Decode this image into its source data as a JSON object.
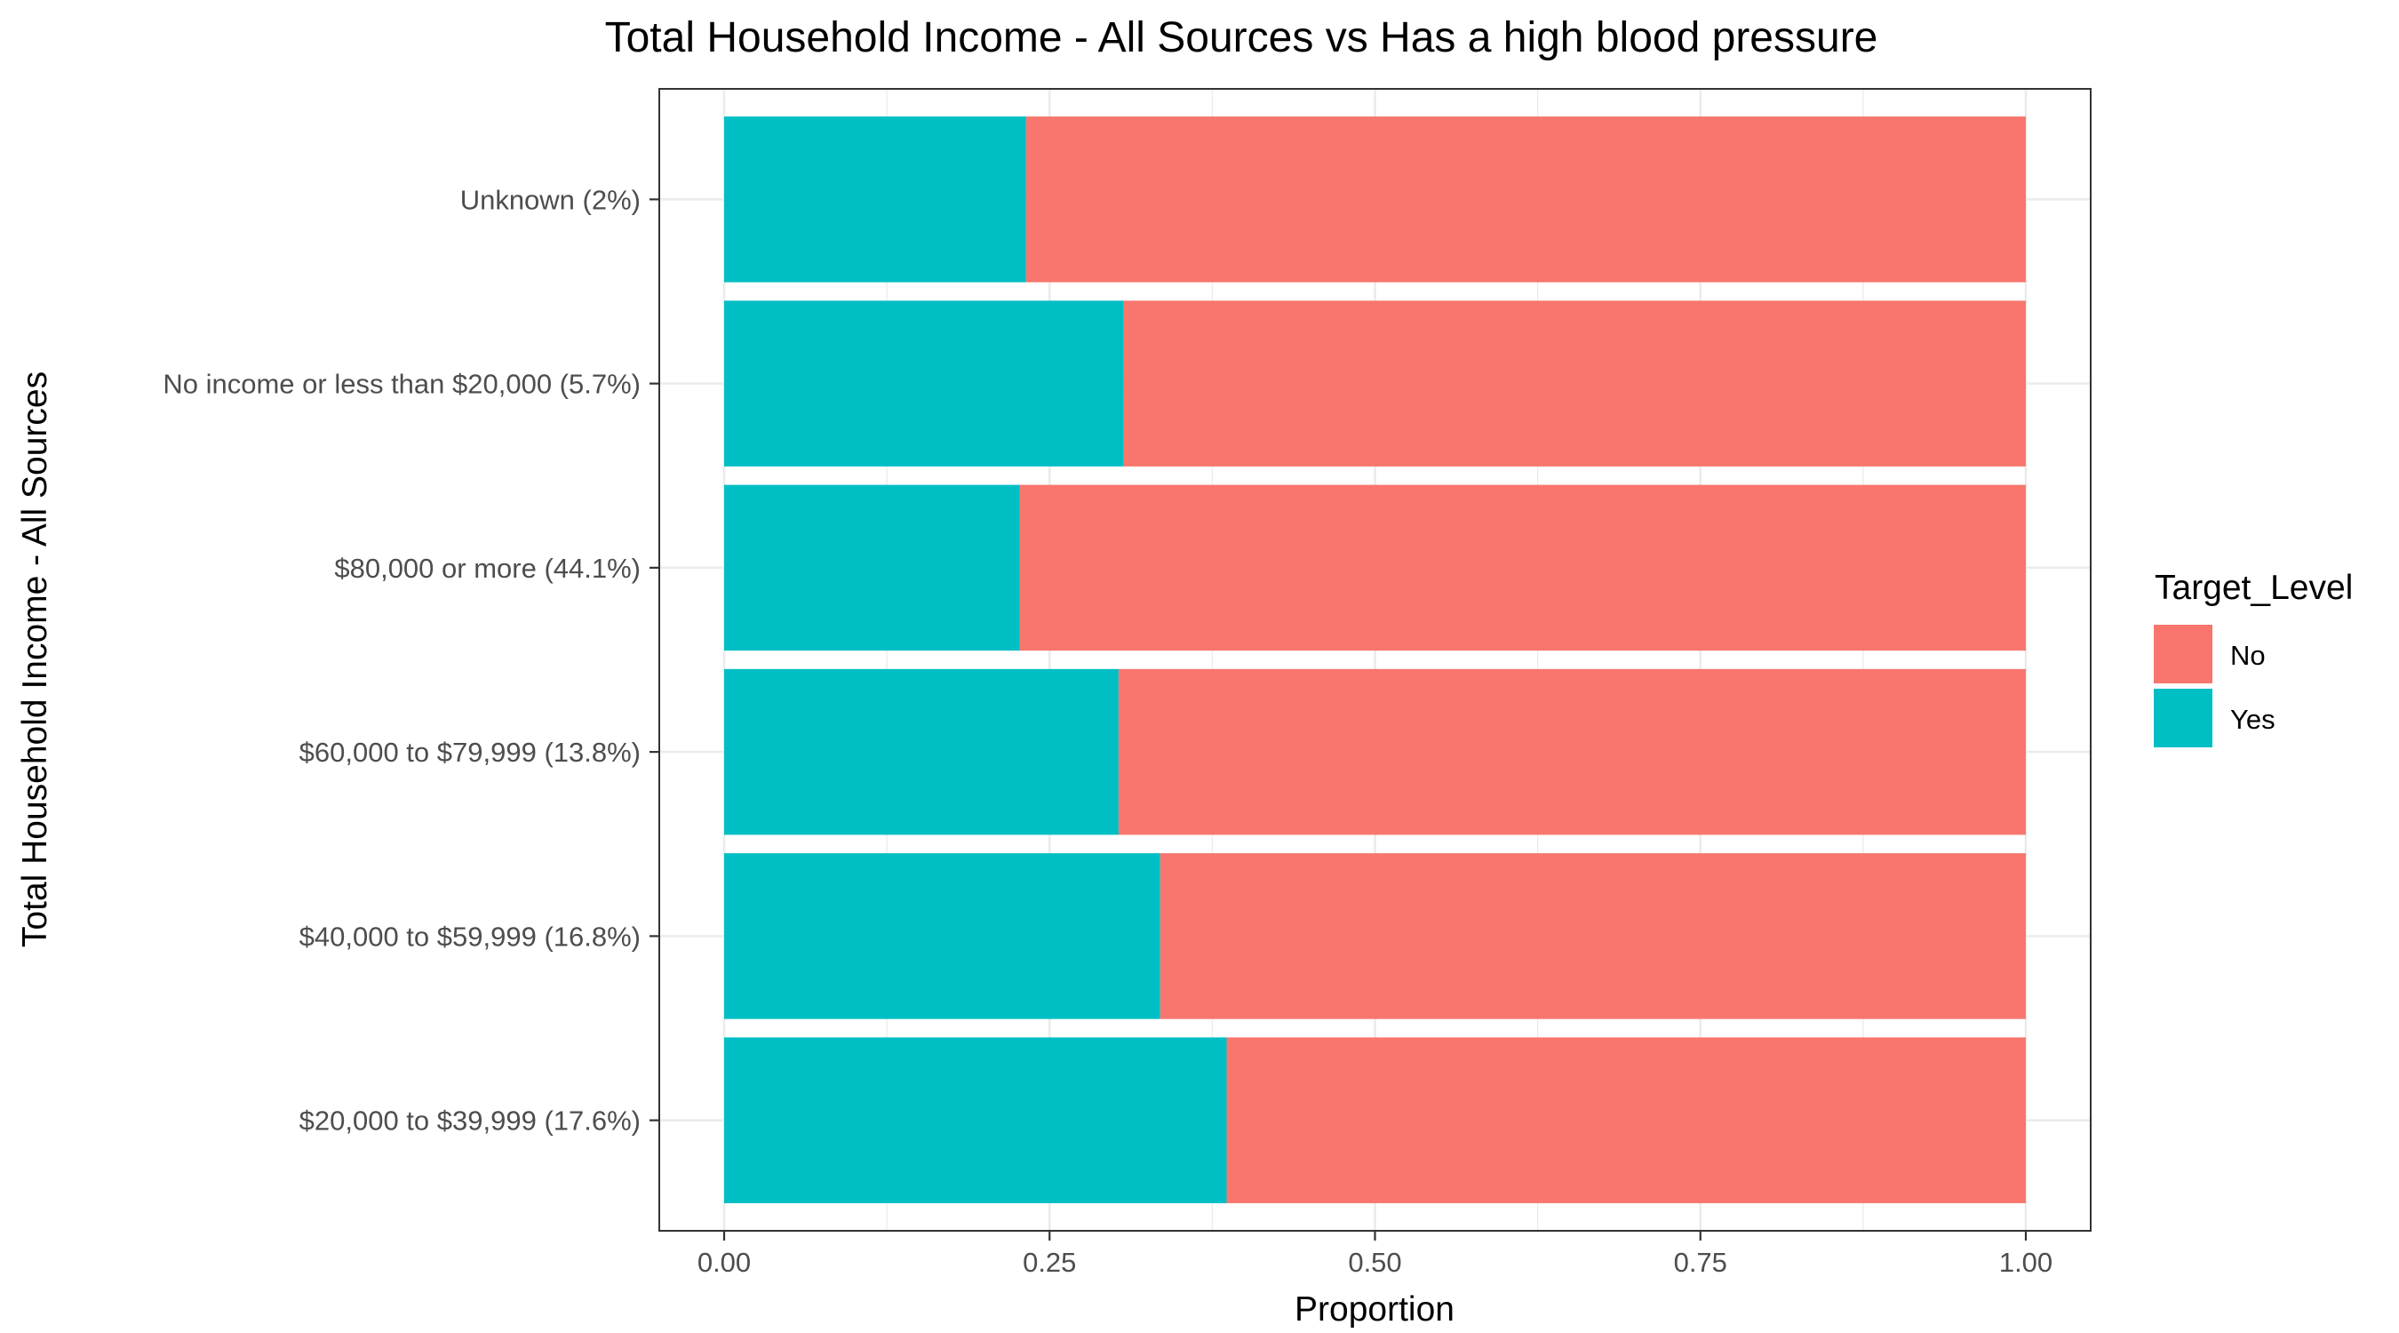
{
  "chart_data": {
    "type": "bar",
    "orientation": "horizontal",
    "stacked": true,
    "title": "Total Household Income - All Sources vs Has a high blood pressure",
    "xlabel": "Proportion",
    "ylabel": "Total Household Income - All Sources",
    "xlim": [
      0,
      1
    ],
    "x_ticks": [
      "0.00",
      "0.25",
      "0.50",
      "0.75",
      "1.00"
    ],
    "grid": true,
    "legend": {
      "title": "Target_Level",
      "position": "right"
    },
    "categories": [
      "Unknown (2%)",
      "No income or less than $20,000 (5.7%)",
      "$80,000 or more (44.1%)",
      "$60,000 to $79,999 (13.8%)",
      "$40,000 to $59,999 (16.8%)",
      "$20,000 to $39,999 (17.6%)"
    ],
    "series": [
      {
        "name": "Yes",
        "color": "#00bfc4",
        "values": [
          0.232,
          0.307,
          0.227,
          0.303,
          0.335,
          0.386
        ]
      },
      {
        "name": "No",
        "color": "#f8766d",
        "values": [
          0.768,
          0.693,
          0.773,
          0.697,
          0.665,
          0.614
        ]
      }
    ],
    "legend_order": [
      "No",
      "Yes"
    ]
  }
}
